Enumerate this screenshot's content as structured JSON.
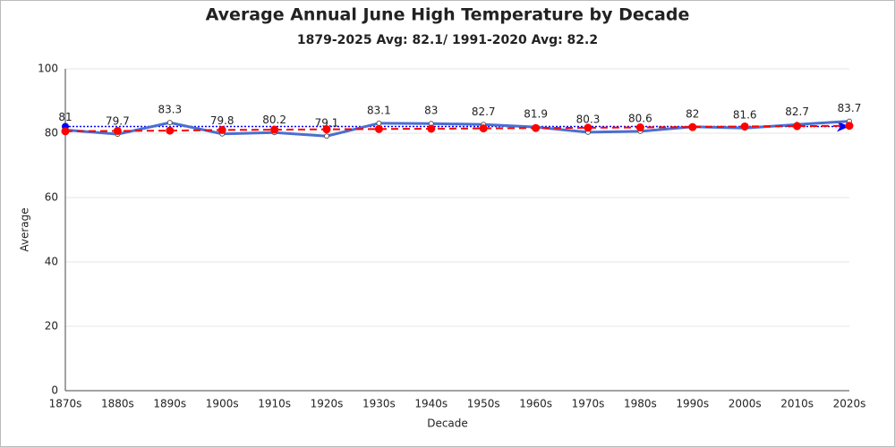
{
  "chart_data": {
    "type": "line",
    "title": "Average Annual June High Temperature by Decade",
    "subtitle": "1879-2025 Avg: 82.1/ 1991-2020 Avg: 82.2",
    "x_label": "Decade",
    "y_label": "Average",
    "categories": [
      "1870s",
      "1880s",
      "1890s",
      "1900s",
      "1910s",
      "1920s",
      "1930s",
      "1940s",
      "1950s",
      "1960s",
      "1970s",
      "1980s",
      "1990s",
      "2000s",
      "2010s",
      "2020s"
    ],
    "series": [
      {
        "color": "#4a6fd0",
        "values": [
          81,
          79.7,
          83.3,
          79.8,
          80.2,
          79.1,
          83.1,
          83,
          82.7,
          81.9,
          80.3,
          80.6,
          82,
          81.6,
          82.7,
          83.7
        ],
        "data_labels": true
      },
      {
        "color": "#ff0000",
        "dashed": true,
        "values": [
          80.6,
          80.7,
          80.8,
          81.0,
          81.1,
          81.2,
          81.3,
          81.4,
          81.5,
          81.6,
          81.7,
          81.8,
          81.9,
          82.1,
          82.2,
          82.3
        ]
      }
    ],
    "reference_line": {
      "value": 82.1,
      "color": "#0000ff"
    },
    "ylim": [
      0,
      100
    ],
    "yticks": [
      0,
      20,
      40,
      60,
      80,
      100
    ],
    "grid": true
  }
}
